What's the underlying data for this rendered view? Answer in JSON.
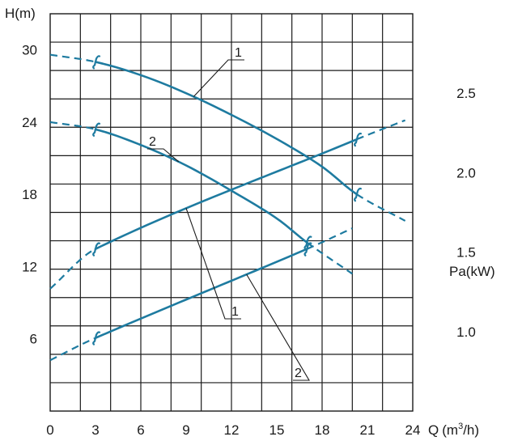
{
  "colors": {
    "curve": "#1e7ba0",
    "grid": "#1a1a1a",
    "text": "#1a1a1a"
  },
  "chart_data": {
    "type": "line",
    "x_axis": {
      "label": "Q(m³/h)",
      "label_main": "Q",
      "label_unit_open": "(m",
      "label_unit_sup": "3",
      "label_unit_close": "/h)",
      "range": [
        0,
        24
      ],
      "ticks": [
        0,
        3,
        6,
        9,
        12,
        15,
        18,
        21,
        24
      ],
      "tick_labels": [
        "0",
        "3",
        "6",
        "9",
        "12",
        "15",
        "18",
        "21",
        "24"
      ]
    },
    "head_axis": {
      "label": "H(m)",
      "range": [
        0,
        33
      ],
      "ticks": [
        6,
        12,
        18,
        24,
        30
      ],
      "tick_labels": [
        "6",
        "12",
        "18",
        "24",
        "30"
      ]
    },
    "power_axis": {
      "label": "Pa(kW)",
      "range": [
        0.5,
        3.0
      ],
      "ticks": [
        2.5,
        2.0,
        1.5,
        1.0
      ],
      "tick_labels": [
        "2.5",
        "2.0",
        "1.5",
        "1.0"
      ]
    },
    "grid": true,
    "series": [
      {
        "name": "1",
        "axis": "head",
        "x": [
          0,
          3,
          6,
          9,
          12,
          15,
          18,
          20.3,
          23.5
        ],
        "y": [
          29.6,
          29.0,
          27.9,
          26.4,
          24.6,
          22.6,
          20.3,
          18.0,
          15.8
        ],
        "solid_range": [
          3,
          20.3
        ]
      },
      {
        "name": "2",
        "axis": "head",
        "x": [
          0,
          3,
          6,
          9,
          12,
          15,
          17,
          20
        ],
        "y": [
          24.0,
          23.4,
          22.1,
          20.4,
          18.3,
          16.0,
          14.0,
          11.4
        ],
        "solid_range": [
          3,
          17
        ]
      },
      {
        "name": "1",
        "axis": "power",
        "x": [
          0,
          3,
          20.3,
          23.5
        ],
        "y": [
          1.27,
          1.52,
          2.21,
          2.33
        ],
        "solid_range": [
          3,
          20.3
        ]
      },
      {
        "name": "2",
        "axis": "power",
        "x": [
          0,
          3,
          17,
          20
        ],
        "y": [
          0.82,
          0.96,
          1.52,
          1.65
        ],
        "solid_range": [
          3,
          17
        ]
      }
    ],
    "callouts": [
      {
        "text": "1",
        "series": 0
      },
      {
        "text": "2",
        "series": 1
      },
      {
        "text": "1",
        "series": 2
      },
      {
        "text": "2",
        "series": 3
      }
    ]
  }
}
